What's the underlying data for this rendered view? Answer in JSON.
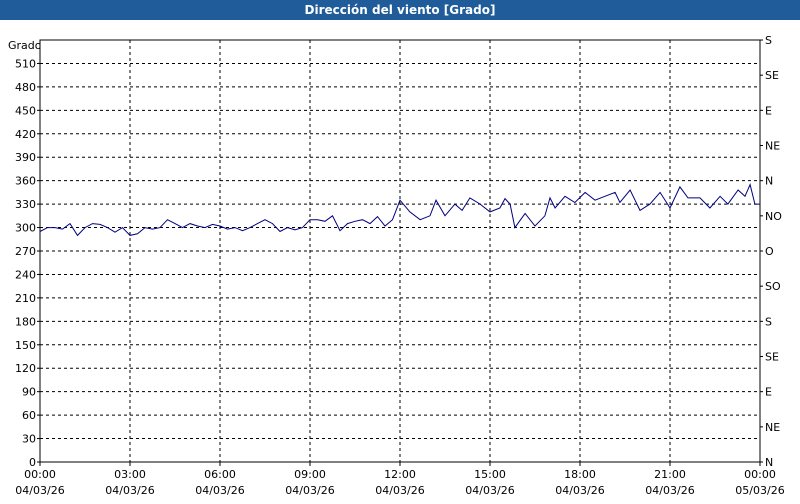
{
  "chart_data": {
    "type": "line",
    "title": "Dirección del viento [Grado]",
    "y_label": "Grado",
    "x": [
      0,
      0.25,
      0.5,
      0.75,
      1,
      1.25,
      1.5,
      1.75,
      2,
      2.25,
      2.5,
      2.75,
      3,
      3.25,
      3.5,
      3.75,
      4,
      4.25,
      4.5,
      4.75,
      5,
      5.25,
      5.5,
      5.75,
      6,
      6.25,
      6.5,
      6.75,
      7,
      7.25,
      7.5,
      7.75,
      8,
      8.25,
      8.5,
      8.75,
      9,
      9.25,
      9.5,
      9.75,
      10,
      10.25,
      10.5,
      10.75,
      11,
      11.25,
      11.5,
      11.75,
      12,
      12.33,
      12.67,
      13,
      13.2,
      13.5,
      13.83,
      14.07,
      14.33,
      14.67,
      15,
      15.33,
      15.5,
      15.67,
      15.83,
      16.17,
      16.5,
      16.83,
      17,
      17.17,
      17.5,
      17.83,
      18.17,
      18.5,
      18.83,
      19.17,
      19.33,
      19.67,
      20,
      20.33,
      20.67,
      21,
      21.33,
      21.6,
      22,
      22.33,
      22.67,
      22.93,
      23.27,
      23.5,
      23.67,
      23.83,
      24
    ],
    "series": [
      {
        "name": "Dirección del viento",
        "color": "#000080",
        "values": [
          295,
          300,
          300,
          298,
          305,
          290,
          300,
          305,
          304,
          300,
          294,
          300,
          290,
          292,
          300,
          298,
          300,
          310,
          305,
          300,
          305,
          302,
          300,
          304,
          302,
          298,
          300,
          296,
          300,
          305,
          310,
          305,
          295,
          300,
          297,
          300,
          310,
          310,
          308,
          315,
          296,
          305,
          308,
          310,
          305,
          314,
          302,
          310,
          335,
          320,
          310,
          315,
          335,
          315,
          330,
          322,
          338,
          330,
          320,
          325,
          337,
          330,
          300,
          318,
          302,
          315,
          338,
          325,
          340,
          332,
          345,
          335,
          340,
          345,
          332,
          348,
          322,
          330,
          345,
          325,
          352,
          338,
          338,
          325,
          340,
          330,
          348,
          340,
          355,
          330,
          330
        ]
      }
    ],
    "xlim": [
      0,
      24
    ],
    "xticks": [
      {
        "value": 0,
        "label": [
          "00:00",
          "04/03/26"
        ]
      },
      {
        "value": 3,
        "label": [
          "03:00",
          "04/03/26"
        ]
      },
      {
        "value": 6,
        "label": [
          "06:00",
          "04/03/26"
        ]
      },
      {
        "value": 9,
        "label": [
          "09:00",
          "04/03/26"
        ]
      },
      {
        "value": 12,
        "label": [
          "12:00",
          "04/03/26"
        ]
      },
      {
        "value": 15,
        "label": [
          "15:00",
          "04/03/26"
        ]
      },
      {
        "value": 18,
        "label": [
          "18:00",
          "04/03/26"
        ]
      },
      {
        "value": 21,
        "label": [
          "21:00",
          "04/03/26"
        ]
      },
      {
        "value": 24,
        "label": [
          "00:00",
          "05/03/26"
        ]
      }
    ],
    "ylim": [
      0,
      540
    ],
    "yticks": [
      0,
      30,
      60,
      90,
      120,
      150,
      180,
      210,
      240,
      270,
      300,
      330,
      360,
      390,
      420,
      450,
      480,
      510
    ],
    "y2lim": [
      0,
      540
    ],
    "y2ticks": [
      {
        "value": 0,
        "label": "N"
      },
      {
        "value": 45,
        "label": "NE"
      },
      {
        "value": 90,
        "label": "E"
      },
      {
        "value": 135,
        "label": "SE"
      },
      {
        "value": 180,
        "label": "S"
      },
      {
        "value": 225,
        "label": "SO"
      },
      {
        "value": 270,
        "label": "O"
      },
      {
        "value": 315,
        "label": "NO"
      },
      {
        "value": 360,
        "label": "N"
      },
      {
        "value": 405,
        "label": "NE"
      },
      {
        "value": 450,
        "label": "E"
      },
      {
        "value": 495,
        "label": "SE"
      },
      {
        "value": 540,
        "label": "S"
      }
    ],
    "grid": true
  }
}
